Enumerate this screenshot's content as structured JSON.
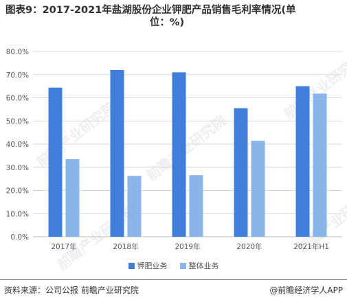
{
  "title_line1": "图表9：2017-2021年盐湖股份企业钾肥产品销售毛利率情况(单",
  "title_line2": "位：%)",
  "source": "资料来源：公司公报 前瞻产业研究院",
  "brand": "@前瞻经济学人APP",
  "watermark": "前瞻产业研究院",
  "colors": {
    "series1": "#3f7fd9",
    "series2": "#8ab4ea",
    "grid": "#d9d9d9",
    "axis": "#bfbfbf"
  },
  "chart_data": {
    "type": "bar",
    "categories": [
      "2017年",
      "2018年",
      "2019年",
      "2020年",
      "2021年H1"
    ],
    "series": [
      {
        "name": "钾肥业务",
        "values": [
          64.4,
          72.0,
          71.0,
          55.5,
          65.0
        ]
      },
      {
        "name": "整体业务",
        "values": [
          33.5,
          26.3,
          26.6,
          41.4,
          61.8
        ]
      }
    ],
    "yticks": [
      "0.0%",
      "10.0%",
      "20.0%",
      "30.0%",
      "40.0%",
      "50.0%",
      "60.0%",
      "70.0%",
      "80.0%"
    ],
    "ylim": [
      0,
      80
    ],
    "grid": true,
    "legend": "bottom"
  }
}
